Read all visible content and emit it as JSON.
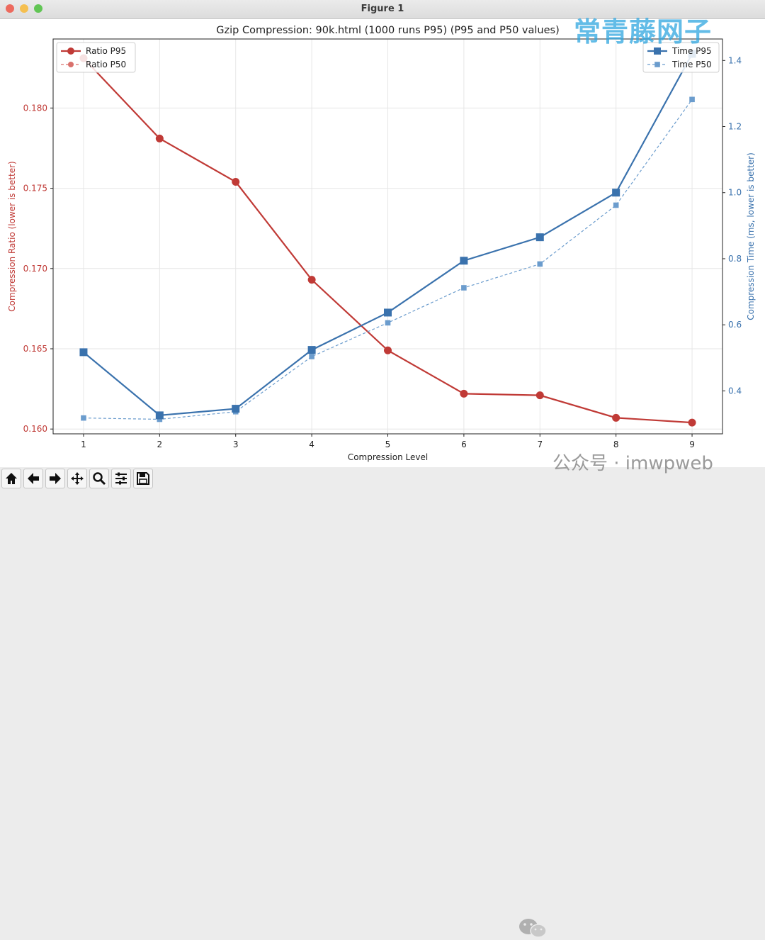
{
  "window": {
    "title": "Figure 1"
  },
  "watermark": {
    "text": "常青藤网子"
  },
  "wechat": {
    "text": "公众号 · imwpweb"
  },
  "toolbar": {
    "buttons": [
      "home-icon",
      "back-arrow-icon",
      "forward-arrow-icon",
      "pan-icon",
      "zoom-icon",
      "configure-subplots-icon",
      "save-icon"
    ]
  },
  "chart_data": {
    "type": "line",
    "title": "Gzip Compression: 90k.html (1000 runs P95) (P95 and P50 values)",
    "xlabel": "Compression Level",
    "ylabel_left": "Compression Ratio (lower is better)",
    "ylabel_right": "Compression Time (ms, lower is better)",
    "x": [
      1,
      2,
      3,
      4,
      5,
      6,
      7,
      8,
      9
    ],
    "xlim": [
      0.6,
      9.4
    ],
    "ylim_left": [
      0.1597,
      0.1843
    ],
    "ylim_right": [
      0.27,
      1.465
    ],
    "yticks_left": [
      "0.160",
      "0.165",
      "0.170",
      "0.175",
      "0.180"
    ],
    "yticks_right": [
      "0.4",
      "0.6",
      "0.8",
      "1.0",
      "1.2",
      "1.4"
    ],
    "grid": true,
    "colors": {
      "ratio": "#c03a36",
      "ratio_p50": "#d9716c",
      "time": "#3a72ad",
      "time_p50": "#6b9ccd"
    },
    "series_left": [
      {
        "name": "Ratio P95",
        "style": "solid-circle",
        "values": [
          0.1831,
          0.1781,
          0.1754,
          0.1693,
          0.1649,
          0.1622,
          0.1621,
          0.1607,
          0.1604
        ]
      },
      {
        "name": "Ratio P50",
        "style": "dashed-circle",
        "values": [
          0.1831,
          0.1781,
          0.1754,
          0.1693,
          0.1649,
          0.1622,
          0.1621,
          0.1607,
          0.1604
        ]
      }
    ],
    "series_right": [
      {
        "name": "Time P95",
        "style": "solid-square",
        "values": [
          0.517,
          0.326,
          0.346,
          0.524,
          0.637,
          0.794,
          0.865,
          1.0,
          1.42
        ]
      },
      {
        "name": "Time P50",
        "style": "dashed-square",
        "values": [
          0.318,
          0.314,
          0.337,
          0.504,
          0.606,
          0.712,
          0.784,
          0.962,
          1.282
        ]
      }
    ],
    "legend_left": "top-left",
    "legend_right": "top-right"
  }
}
